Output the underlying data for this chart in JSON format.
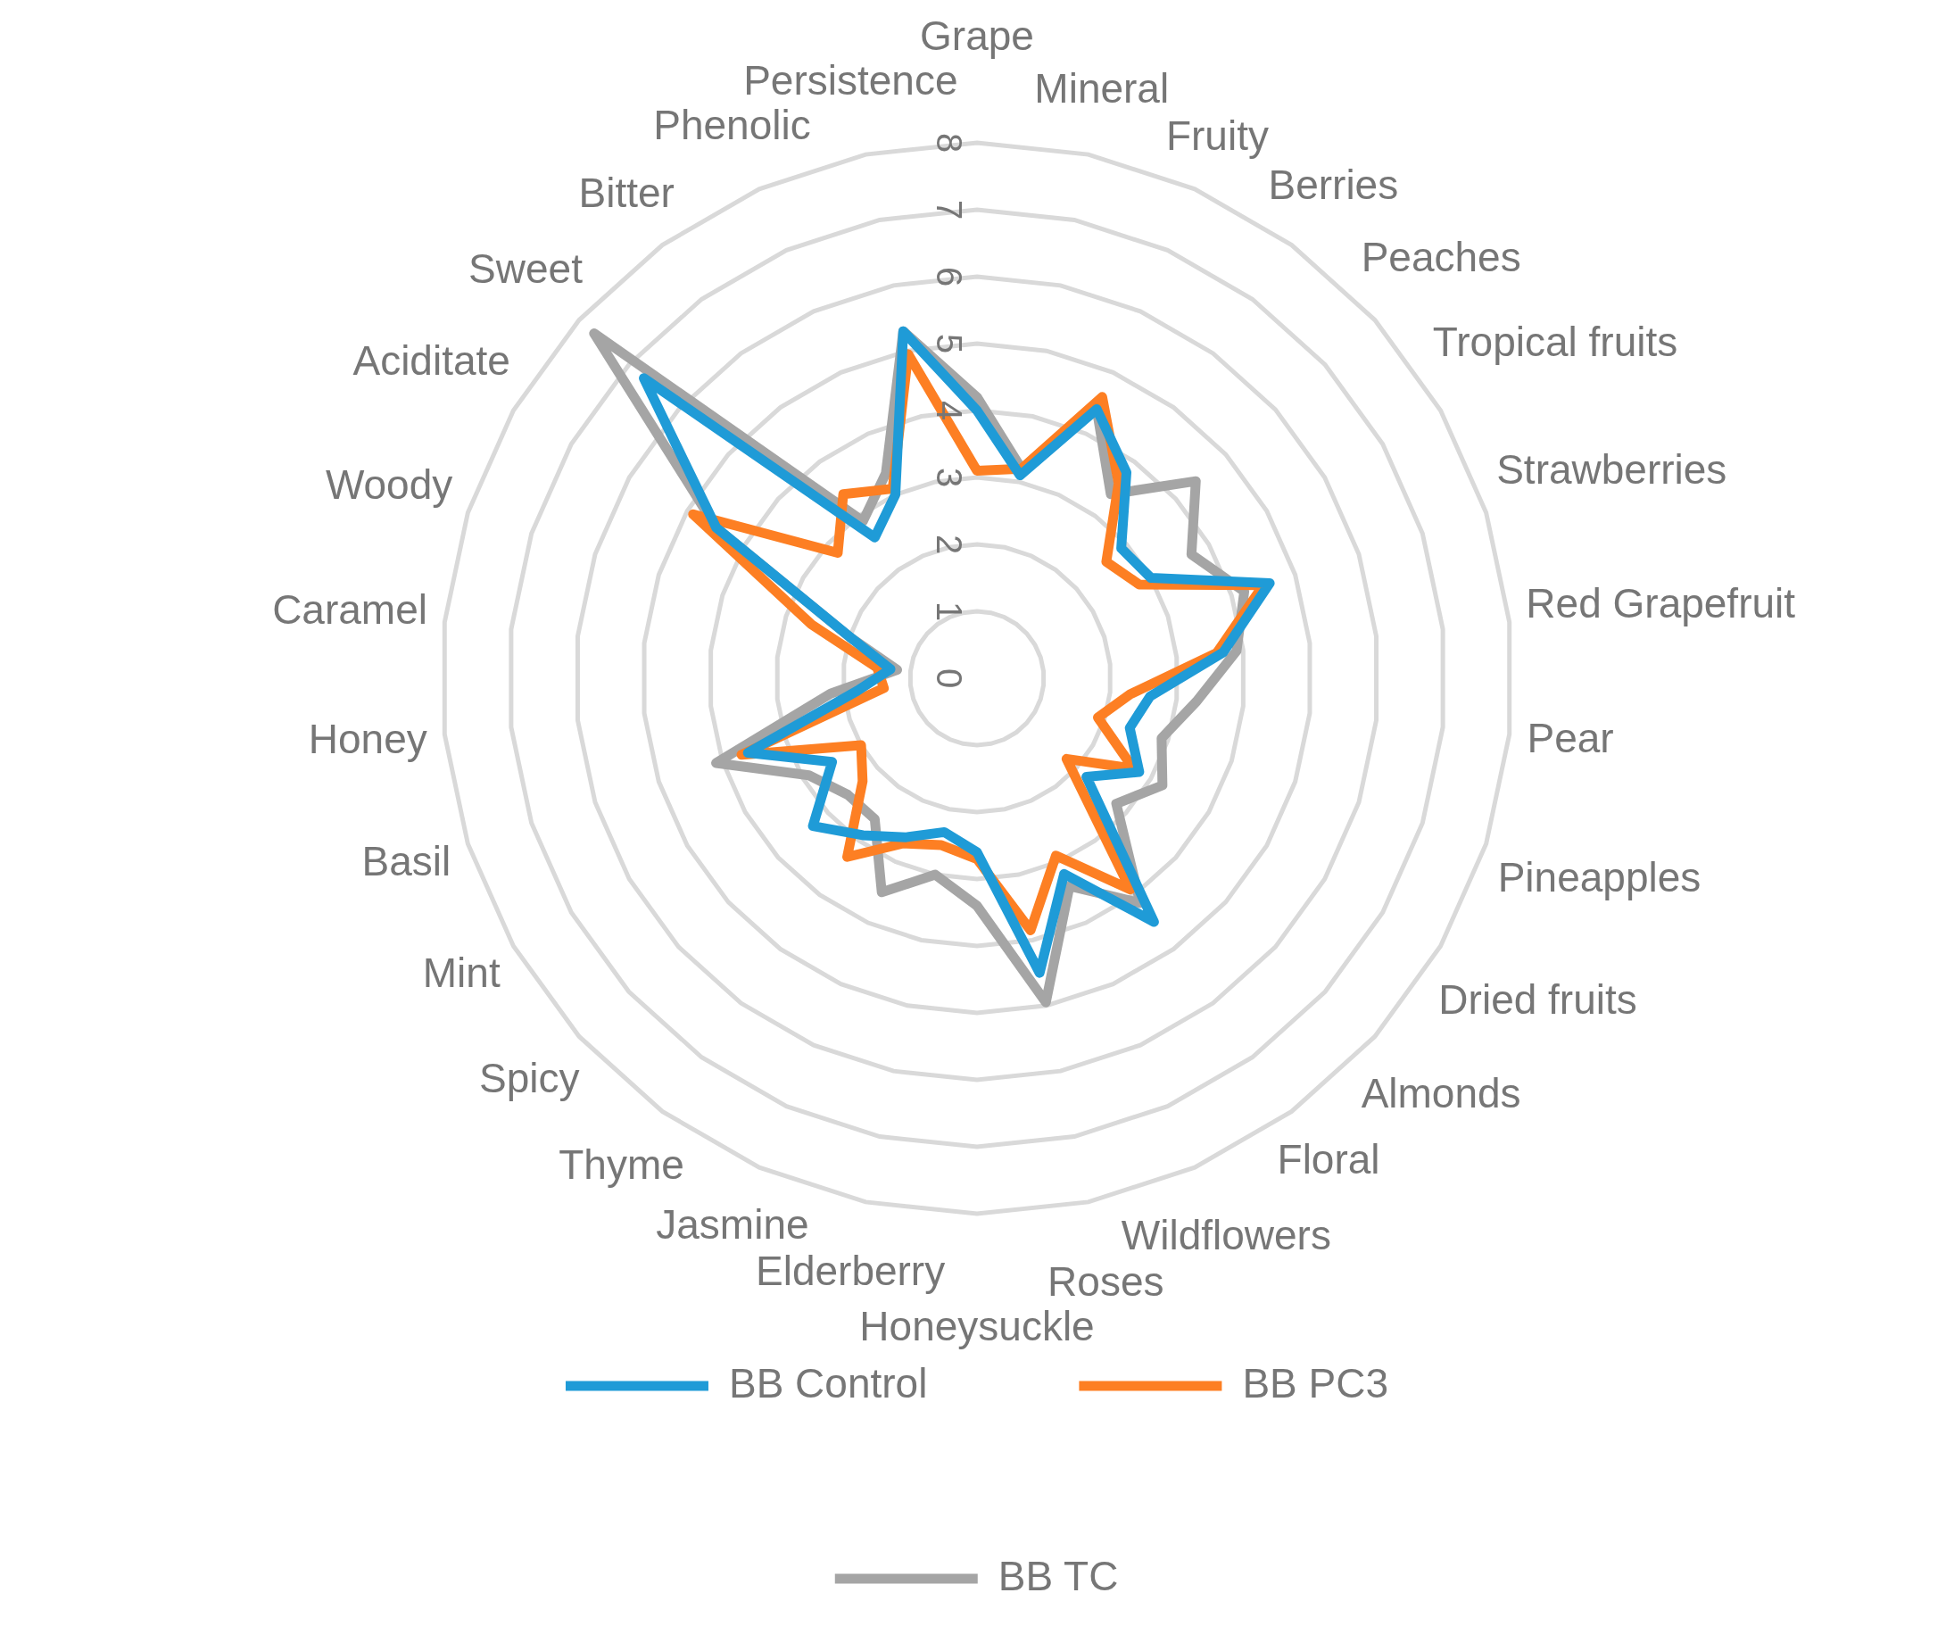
{
  "chart_data": {
    "type": "radar",
    "categories": [
      "Grape",
      "Mineral",
      "Fruity",
      "Berries",
      "Peaches",
      "Tropical fruits",
      "Strawberries",
      "Red Grapefruit",
      "Pear",
      "Pineapples",
      "Dried fruits",
      "Almonds",
      "Floral",
      "Wildflowers",
      "Roses",
      "Honeysuckle",
      "Elderberry",
      "Jasmine",
      "Thyme",
      "Spicy",
      "Mint",
      "Basil",
      "Honey",
      "Caramel",
      "Woody",
      "Aciditate",
      "Sweet",
      "Bitter",
      "Phenolic",
      "Persistence"
    ],
    "series": [
      {
        "name": "BB Control",
        "color": "#1f9bd7",
        "values": [
          4.0,
          3.1,
          4.4,
          3.8,
          2.9,
          3.0,
          4.6,
          3.7,
          2.6,
          2.4,
          2.8,
          2.2,
          4.5,
          3.2,
          4.5,
          2.6,
          2.35,
          2.6,
          2.9,
          3.3,
          2.5,
          3.6,
          1.8,
          1.3,
          2.0,
          4.5,
          6.7,
          2.6,
          3.0,
          5.3
        ]
      },
      {
        "name": "BB PC3",
        "color": "#fd7f23",
        "values": [
          3.1,
          3.2,
          4.6,
          3.6,
          2.6,
          2.8,
          4.5,
          3.6,
          2.3,
          1.9,
          2.7,
          1.8,
          3.9,
          2.9,
          3.85,
          2.7,
          2.55,
          2.7,
          3.3,
          2.3,
          2.0,
          3.7,
          1.4,
          1.5,
          2.6,
          4.9,
          2.8,
          3.4,
          3.1,
          4.95
        ]
      },
      {
        "name": "BB TC",
        "color": "#a5a5a5",
        "values": [
          4.2,
          3.2,
          4.4,
          3.4,
          4.4,
          3.7,
          4.2,
          3.9,
          3.3,
          2.9,
          3.2,
          2.8,
          4.15,
          3.4,
          4.95,
          3.4,
          3.0,
          3.5,
          2.6,
          2.6,
          2.9,
          4.1,
          2.2,
          1.2,
          2.0,
          4.5,
          7.7,
          2.9,
          3.35,
          5.3
        ]
      }
    ],
    "ylim": [
      0,
      8
    ],
    "yticks": [
      0,
      1,
      2,
      3,
      4,
      5,
      6,
      7,
      8
    ],
    "grid": true,
    "legend": "bottom"
  }
}
